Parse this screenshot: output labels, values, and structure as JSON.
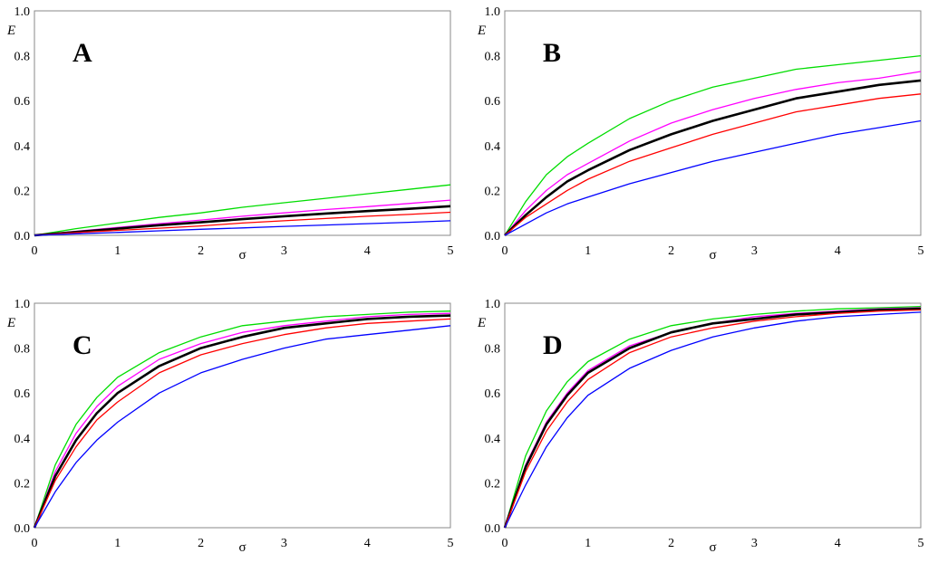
{
  "chart_data": [
    {
      "type": "line",
      "panel": "A",
      "xlabel": "σ",
      "ylabel": "E",
      "xlim": [
        0,
        5
      ],
      "ylim": [
        0,
        1
      ],
      "x_ticks": [
        "0",
        "1",
        "2",
        "3",
        "4",
        "5"
      ],
      "y_ticks": [
        "0.0",
        "0.2",
        "0.4",
        "0.6",
        "0.8",
        "1.0"
      ],
      "x": [
        0,
        0.5,
        1,
        1.5,
        2,
        2.5,
        3,
        3.5,
        4,
        4.5,
        5
      ],
      "series": [
        {
          "name": "green",
          "color": "#00dd00",
          "values": [
            0,
            0.03,
            0.055,
            0.08,
            0.1,
            0.125,
            0.145,
            0.165,
            0.185,
            0.205,
            0.225
          ]
        },
        {
          "name": "magenta",
          "color": "#ff00ff",
          "values": [
            0,
            0.018,
            0.035,
            0.052,
            0.068,
            0.085,
            0.1,
            0.115,
            0.128,
            0.142,
            0.157
          ]
        },
        {
          "name": "black",
          "color": "#000000",
          "values": [
            0,
            0.015,
            0.03,
            0.045,
            0.058,
            0.072,
            0.085,
            0.097,
            0.108,
            0.118,
            0.13
          ]
        },
        {
          "name": "red",
          "color": "#ff0000",
          "values": [
            0,
            0.012,
            0.022,
            0.032,
            0.042,
            0.055,
            0.065,
            0.075,
            0.085,
            0.093,
            0.103
          ]
        },
        {
          "name": "blue",
          "color": "#0000ff",
          "values": [
            0,
            0.007,
            0.013,
            0.02,
            0.027,
            0.033,
            0.04,
            0.046,
            0.052,
            0.058,
            0.065
          ]
        }
      ]
    },
    {
      "type": "line",
      "panel": "B",
      "xlabel": "σ",
      "ylabel": "E",
      "xlim": [
        0,
        5
      ],
      "ylim": [
        0,
        1
      ],
      "x_ticks": [
        "0",
        "1",
        "2",
        "3",
        "4",
        "5"
      ],
      "y_ticks": [
        "0.0",
        "0.2",
        "0.4",
        "0.6",
        "0.8",
        "1.0"
      ],
      "x": [
        0,
        0.25,
        0.5,
        0.75,
        1,
        1.5,
        2,
        2.5,
        3,
        3.5,
        4,
        4.5,
        5
      ],
      "series": [
        {
          "name": "green",
          "color": "#00dd00",
          "values": [
            0,
            0.15,
            0.27,
            0.35,
            0.41,
            0.52,
            0.6,
            0.66,
            0.7,
            0.74,
            0.76,
            0.78,
            0.8
          ]
        },
        {
          "name": "magenta",
          "color": "#ff00ff",
          "values": [
            0,
            0.11,
            0.2,
            0.27,
            0.32,
            0.42,
            0.5,
            0.56,
            0.61,
            0.65,
            0.68,
            0.7,
            0.73
          ]
        },
        {
          "name": "black",
          "color": "#000000",
          "values": [
            0,
            0.09,
            0.17,
            0.24,
            0.29,
            0.38,
            0.45,
            0.51,
            0.56,
            0.61,
            0.64,
            0.67,
            0.69
          ]
        },
        {
          "name": "red",
          "color": "#ff0000",
          "values": [
            0,
            0.08,
            0.14,
            0.2,
            0.25,
            0.33,
            0.39,
            0.45,
            0.5,
            0.55,
            0.58,
            0.61,
            0.63
          ]
        },
        {
          "name": "blue",
          "color": "#0000ff",
          "values": [
            0,
            0.05,
            0.1,
            0.14,
            0.17,
            0.23,
            0.28,
            0.33,
            0.37,
            0.41,
            0.45,
            0.48,
            0.51
          ]
        }
      ]
    },
    {
      "type": "line",
      "panel": "C",
      "xlabel": "σ",
      "ylabel": "E",
      "xlim": [
        0,
        5
      ],
      "ylim": [
        0,
        1
      ],
      "x_ticks": [
        "0",
        "1",
        "2",
        "3",
        "4",
        "5"
      ],
      "y_ticks": [
        "0.0",
        "0.2",
        "0.4",
        "0.6",
        "0.8",
        "1.0"
      ],
      "x": [
        0,
        0.25,
        0.5,
        0.75,
        1,
        1.5,
        2,
        2.5,
        3,
        3.5,
        4,
        4.5,
        5
      ],
      "series": [
        {
          "name": "green",
          "color": "#00dd00",
          "values": [
            0,
            0.28,
            0.46,
            0.58,
            0.67,
            0.78,
            0.85,
            0.9,
            0.92,
            0.94,
            0.95,
            0.96,
            0.965
          ]
        },
        {
          "name": "magenta",
          "color": "#ff00ff",
          "values": [
            0,
            0.25,
            0.42,
            0.54,
            0.63,
            0.75,
            0.82,
            0.87,
            0.9,
            0.92,
            0.94,
            0.95,
            0.955
          ]
        },
        {
          "name": "black",
          "color": "#000000",
          "values": [
            0,
            0.23,
            0.39,
            0.51,
            0.6,
            0.72,
            0.8,
            0.85,
            0.89,
            0.91,
            0.93,
            0.94,
            0.945
          ]
        },
        {
          "name": "red",
          "color": "#ff0000",
          "values": [
            0,
            0.21,
            0.36,
            0.48,
            0.56,
            0.69,
            0.77,
            0.82,
            0.86,
            0.89,
            0.91,
            0.92,
            0.93
          ]
        },
        {
          "name": "blue",
          "color": "#0000ff",
          "values": [
            0,
            0.16,
            0.29,
            0.39,
            0.47,
            0.6,
            0.69,
            0.75,
            0.8,
            0.84,
            0.86,
            0.88,
            0.9
          ]
        }
      ]
    },
    {
      "type": "line",
      "panel": "D",
      "xlabel": "σ",
      "ylabel": "E",
      "xlim": [
        0,
        5
      ],
      "ylim": [
        0,
        1
      ],
      "x_ticks": [
        "0",
        "1",
        "2",
        "3",
        "4",
        "5"
      ],
      "y_ticks": [
        "0.0",
        "0.2",
        "0.4",
        "0.6",
        "0.8",
        "1.0"
      ],
      "x": [
        0,
        0.25,
        0.5,
        0.75,
        1,
        1.5,
        2,
        2.5,
        3,
        3.5,
        4,
        4.5,
        5
      ],
      "series": [
        {
          "name": "green",
          "color": "#00dd00",
          "values": [
            0,
            0.32,
            0.52,
            0.65,
            0.74,
            0.84,
            0.9,
            0.93,
            0.95,
            0.965,
            0.975,
            0.98,
            0.985
          ]
        },
        {
          "name": "magenta",
          "color": "#ff00ff",
          "values": [
            0,
            0.28,
            0.47,
            0.6,
            0.7,
            0.81,
            0.87,
            0.91,
            0.94,
            0.955,
            0.965,
            0.975,
            0.98
          ]
        },
        {
          "name": "black",
          "color": "#000000",
          "values": [
            0,
            0.27,
            0.46,
            0.59,
            0.69,
            0.8,
            0.87,
            0.91,
            0.93,
            0.95,
            0.96,
            0.97,
            0.975
          ]
        },
        {
          "name": "red",
          "color": "#ff0000",
          "values": [
            0,
            0.25,
            0.43,
            0.56,
            0.66,
            0.78,
            0.85,
            0.89,
            0.92,
            0.94,
            0.955,
            0.965,
            0.97
          ]
        },
        {
          "name": "blue",
          "color": "#0000ff",
          "values": [
            0,
            0.19,
            0.36,
            0.49,
            0.59,
            0.71,
            0.79,
            0.85,
            0.89,
            0.92,
            0.94,
            0.95,
            0.96
          ]
        }
      ]
    }
  ]
}
